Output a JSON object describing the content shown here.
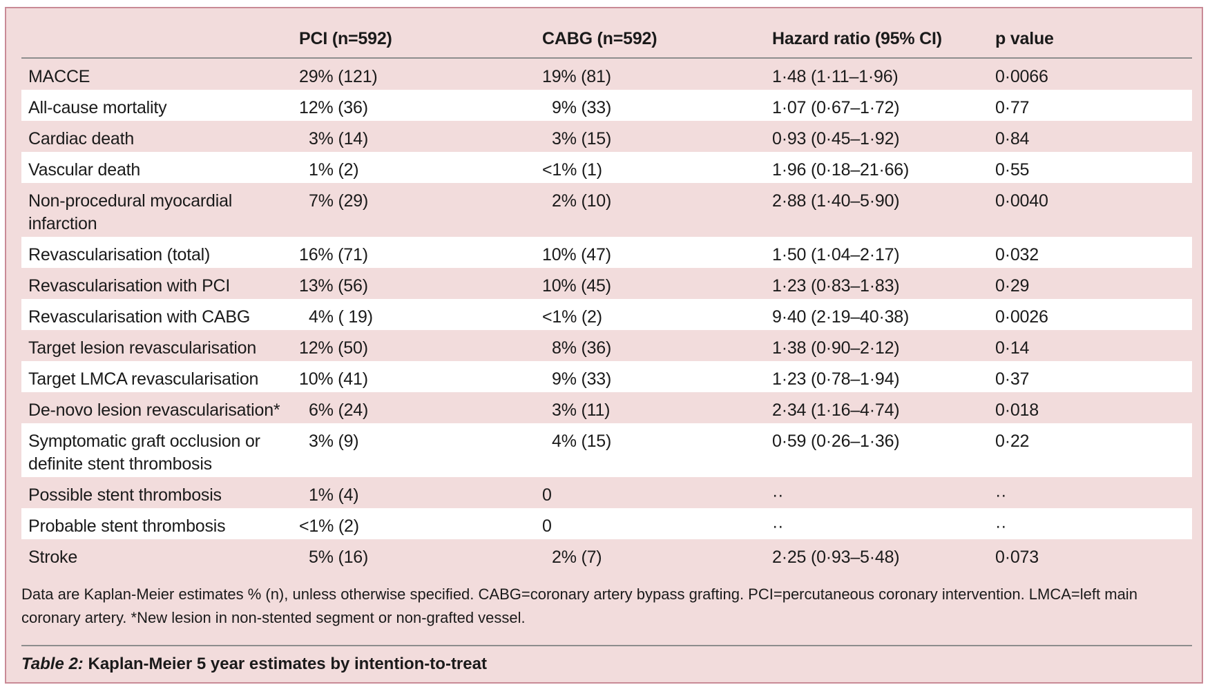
{
  "table": {
    "headers": [
      "",
      "PCI (n=592)",
      "CABG (n=592)",
      "Hazard ratio (95% CI)",
      "p value"
    ],
    "rows": [
      {
        "outcome": "MACCE",
        "pci": "29% (121)",
        "cabg": "19% (81)",
        "hr": "1·48 (1·11–1·96)",
        "p": "0·0066"
      },
      {
        "outcome": "All-cause mortality",
        "pci": "12% (36)",
        "cabg": "9% (33)",
        "hr": "1·07 (0·67–1·72)",
        "p": "0·77"
      },
      {
        "outcome": "Cardiac death",
        "pci": "3% (14)",
        "cabg": "3% (15)",
        "hr": "0·93 (0·45–1·92)",
        "p": "0·84"
      },
      {
        "outcome": "Vascular death",
        "pci": "1% (2)",
        "cabg": "<1% (1)",
        "hr": "1·96 (0·18–21·66)",
        "p": "0·55"
      },
      {
        "outcome": "Non-procedural myocardial infarction",
        "pci": "7% (29)",
        "cabg": "2% (10)",
        "hr": "2·88 (1·40–5·90)",
        "p": "0·0040"
      },
      {
        "outcome": "Revascularisation (total)",
        "pci": "16% (71)",
        "cabg": "10% (47)",
        "hr": "1·50 (1·04–2·17)",
        "p": "0·032"
      },
      {
        "outcome": "Revascularisation with PCI",
        "pci": "13% (56)",
        "cabg": "10% (45)",
        "hr": "1·23 (0·83–1·83)",
        "p": "0·29"
      },
      {
        "outcome": "Revascularisation with CABG",
        "pci": "4% ( 19)",
        "cabg": "<1% (2)",
        "hr": "9·40 (2·19–40·38)",
        "p": "0·0026"
      },
      {
        "outcome": "Target lesion revascularisation",
        "pci": "12% (50)",
        "cabg": "8% (36)",
        "hr": "1·38 (0·90–2·12)",
        "p": "0·14"
      },
      {
        "outcome": "Target LMCA revascularisation",
        "pci": "10% (41)",
        "cabg": "9% (33)",
        "hr": "1·23 (0·78–1·94)",
        "p": "0·37"
      },
      {
        "outcome": "De-novo lesion revascularisation*",
        "pci": "6% (24)",
        "cabg": "3% (11)",
        "hr": "2·34 (1·16–4·74)",
        "p": "0·018"
      },
      {
        "outcome": "Symptomatic graft occlusion or definite stent thrombosis",
        "pci": "3% (9)",
        "cabg": "4% (15)",
        "hr": "0·59 (0·26–1·36)",
        "p": "0·22"
      },
      {
        "outcome": "Possible stent thrombosis",
        "pci": "1% (4)",
        "cabg": "0",
        "hr": "··",
        "p": "··"
      },
      {
        "outcome": "Probable stent thrombosis",
        "pci": "<1% (2)",
        "cabg": "0",
        "hr": "··",
        "p": "··"
      },
      {
        "outcome": "Stroke",
        "pci": "5% (16)",
        "cabg": "2% (7)",
        "hr": "2·25 (0·93–5·48)",
        "p": "0·073"
      }
    ]
  },
  "footnote": "Data are Kaplan-Meier estimates % (n), unless otherwise specified. CABG=coronary artery bypass grafting. PCI=percutaneous coronary intervention. LMCA=left main coronary artery. *New lesion in non-stented segment or non-grafted vessel.",
  "caption": {
    "label": "Table 2:",
    "title": " Kaplan-Meier 5 year estimates by intention-to-treat"
  }
}
